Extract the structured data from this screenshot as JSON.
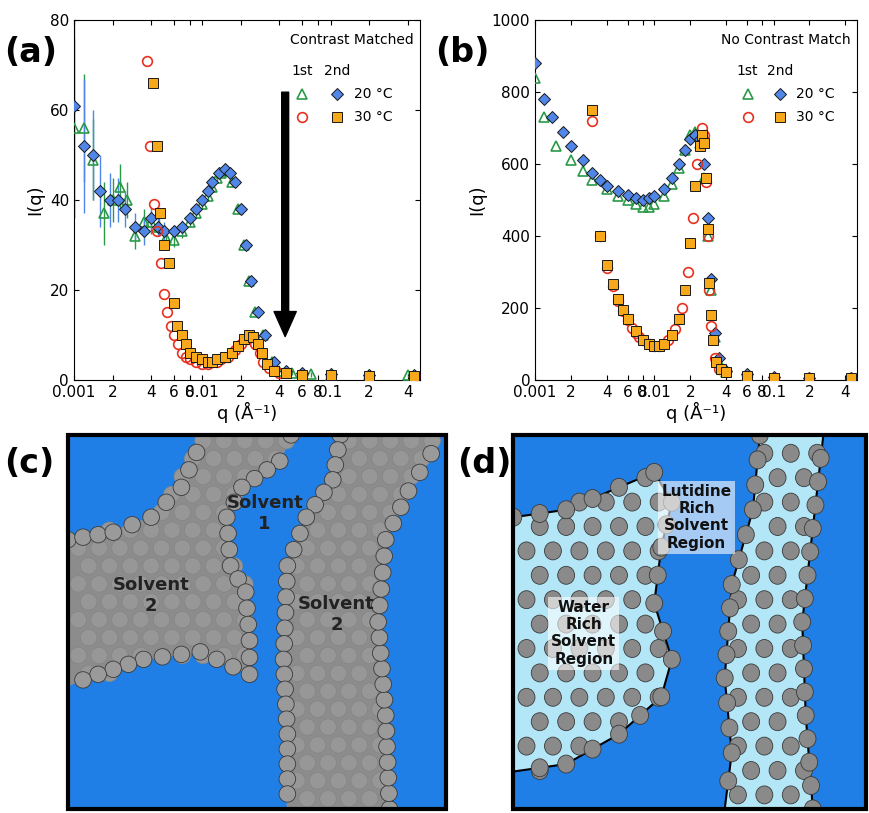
{
  "chart_data": [
    {
      "type": "scatter",
      "panel_label": "(a)",
      "title": "Contrast Matched",
      "x_label": "q (Å⁻¹)",
      "y_label": "I(q)",
      "log": "x",
      "xlim": [
        0.001,
        0.5
      ],
      "ylim": [
        0,
        80
      ],
      "xticks": [
        0.001,
        {
          "value": 0.002,
          "label": "2"
        },
        {
          "value": 0.004,
          "label": "4"
        },
        {
          "value": 0.006,
          "label": "6"
        },
        {
          "value": 0.008,
          "label": "8"
        },
        0.01,
        {
          "value": 0.02,
          "label": "2"
        },
        {
          "value": 0.04,
          "label": "4"
        },
        {
          "value": 0.06,
          "label": "6"
        },
        {
          "value": 0.08,
          "label": "8"
        },
        0.1,
        {
          "value": 0.2,
          "label": "2"
        },
        {
          "value": 0.4,
          "label": "4"
        }
      ],
      "yticks": [
        0,
        20,
        40,
        60,
        80
      ],
      "legend": "upper right",
      "legend_columns": [
        "1st",
        "2nd"
      ],
      "series": [
        {
          "name": "20 °C",
          "run": "1st",
          "color": "#2a9a48",
          "marker": "triangle_open",
          "x": [
            0.001,
            0.0012,
            0.0014,
            0.0017,
            0.002,
            0.0023,
            0.0026,
            0.003,
            0.0035,
            0.004,
            0.0046,
            0.0052,
            0.006,
            0.007,
            0.008,
            0.009,
            0.01,
            0.011,
            0.012,
            0.013,
            0.014,
            0.0155,
            0.017,
            0.019,
            0.021,
            0.023,
            0.026,
            0.03,
            0.035,
            0.04,
            0.05,
            0.07,
            0.1,
            0.2,
            0.4
          ],
          "values": [
            56,
            56,
            49,
            37,
            40,
            43,
            40,
            32,
            35,
            35,
            34,
            31.5,
            31,
            33,
            35,
            37,
            39,
            41,
            43,
            45,
            46,
            46.5,
            44,
            38,
            30,
            22,
            15,
            10,
            4,
            2,
            1.5,
            1.2,
            1,
            1,
            1
          ],
          "errors": [
            20,
            12,
            9,
            7,
            5,
            5,
            4,
            3,
            3,
            2.5,
            2,
            2,
            1.5,
            1.5,
            1,
            1,
            1,
            1,
            1,
            1,
            1,
            1,
            1,
            1,
            1,
            1,
            0.5,
            0.5,
            0.5,
            0.5,
            0.5,
            0.5,
            0.5,
            0.5,
            0.5
          ]
        },
        {
          "name": "20 °C",
          "run": "2nd",
          "color": "#4f86e8",
          "marker": "diamond",
          "x": [
            0.001,
            0.0012,
            0.0014,
            0.0016,
            0.0019,
            0.0022,
            0.0025,
            0.003,
            0.0035,
            0.004,
            0.0045,
            0.005,
            0.006,
            0.007,
            0.008,
            0.009,
            0.01,
            0.011,
            0.012,
            0.0135,
            0.015,
            0.0165,
            0.018,
            0.02,
            0.022,
            0.024,
            0.027,
            0.031,
            0.036,
            0.045,
            0.06,
            0.1,
            0.2,
            0.45
          ],
          "values": [
            61,
            52,
            50,
            42,
            40,
            40,
            38,
            34,
            33,
            36,
            34,
            33,
            33,
            34,
            36,
            38,
            40,
            42,
            44,
            46,
            47,
            46,
            44,
            38,
            30,
            22,
            15,
            10,
            4,
            2,
            1.5,
            1.2,
            1,
            1
          ],
          "errors": [
            25,
            15,
            10,
            8,
            6,
            5,
            4,
            3,
            3,
            2.5,
            2,
            2,
            1.5,
            1.5,
            1,
            1,
            1,
            1,
            1,
            1,
            1,
            1,
            1,
            1,
            1,
            1,
            0.5,
            0.5,
            0.5,
            0.5,
            0.5,
            0.5,
            0.5,
            0.5
          ]
        },
        {
          "name": "30 °C",
          "run": "1st",
          "color": "#e8301e",
          "marker": "circle_open",
          "x": [
            0.0037,
            0.0039,
            0.0042,
            0.0044,
            0.0048,
            0.005,
            0.0053,
            0.0057,
            0.006,
            0.0065,
            0.007,
            0.0075,
            0.008,
            0.009,
            0.01,
            0.011,
            0.012,
            0.013,
            0.014,
            0.016,
            0.018,
            0.02,
            0.022,
            0.024,
            0.026,
            0.028,
            0.03,
            0.033,
            0.04,
            0.06,
            0.1,
            0.2,
            0.45
          ],
          "values": [
            71,
            52,
            39,
            33,
            26,
            19,
            15,
            12,
            10,
            8,
            6,
            5,
            4.5,
            4,
            3.5,
            3.5,
            4,
            4,
            4.5,
            5,
            6.5,
            8,
            9,
            9.5,
            8,
            6,
            4,
            2.5,
            1.5,
            1,
            0.8,
            0.7,
            0.7
          ]
        },
        {
          "name": "30 °C",
          "run": "2nd",
          "color": "#f7a81b",
          "marker": "square",
          "x": [
            0.0041,
            0.0044,
            0.0047,
            0.005,
            0.0055,
            0.006,
            0.0064,
            0.007,
            0.0075,
            0.008,
            0.009,
            0.01,
            0.011,
            0.012,
            0.013,
            0.015,
            0.017,
            0.019,
            0.021,
            0.023,
            0.025,
            0.027,
            0.029,
            0.032,
            0.036,
            0.045,
            0.06,
            0.1,
            0.2,
            0.45
          ],
          "values": [
            66,
            52,
            37,
            30,
            26,
            17,
            12,
            10,
            8,
            6,
            5,
            4.5,
            4,
            4,
            4.5,
            5,
            6,
            7.5,
            9,
            10,
            9.5,
            8,
            6,
            3.5,
            2,
            1.5,
            1,
            1,
            0.8,
            0.8
          ]
        }
      ]
    },
    {
      "type": "scatter",
      "panel_label": "(b)",
      "title": "No Contrast Match",
      "x_label": "q (Å⁻¹)",
      "y_label": "I(q)",
      "log": "x",
      "xlim": [
        0.001,
        0.5
      ],
      "ylim": [
        0,
        1000
      ],
      "xticks": [
        0.001,
        {
          "value": 0.002,
          "label": "2"
        },
        {
          "value": 0.004,
          "label": "4"
        },
        {
          "value": 0.006,
          "label": "6"
        },
        {
          "value": 0.008,
          "label": "8"
        },
        0.01,
        {
          "value": 0.02,
          "label": "2"
        },
        {
          "value": 0.04,
          "label": "4"
        },
        {
          "value": 0.06,
          "label": "6"
        },
        {
          "value": 0.08,
          "label": "8"
        },
        0.1,
        {
          "value": 0.2,
          "label": "2"
        },
        {
          "value": 0.4,
          "label": "4"
        }
      ],
      "yticks": [
        0,
        200,
        400,
        600,
        800,
        1000
      ],
      "legend": "upper right",
      "legend_columns": [
        "1st",
        "2nd"
      ],
      "series": [
        {
          "name": "20 °C",
          "run": "1st",
          "color": "#2a9a48",
          "marker": "triangle_open",
          "x": [
            0.001,
            0.0012,
            0.0015,
            0.002,
            0.0025,
            0.003,
            0.004,
            0.005,
            0.006,
            0.007,
            0.008,
            0.009,
            0.01,
            0.012,
            0.014,
            0.016,
            0.018,
            0.02,
            0.022,
            0.024,
            0.026,
            0.028,
            0.03,
            0.032,
            0.035,
            0.04,
            0.06,
            0.1,
            0.2,
            0.45
          ],
          "values": [
            840,
            730,
            650,
            610,
            580,
            555,
            530,
            510,
            500,
            490,
            480,
            480,
            490,
            510,
            545,
            590,
            640,
            680,
            690,
            660,
            560,
            400,
            250,
            120,
            50,
            20,
            10,
            5,
            5,
            5
          ]
        },
        {
          "name": "20 °C",
          "run": "2nd",
          "color": "#4f86e8",
          "marker": "diamond",
          "x": [
            0.001,
            0.0012,
            0.0014,
            0.0017,
            0.002,
            0.0025,
            0.003,
            0.0035,
            0.004,
            0.005,
            0.006,
            0.007,
            0.008,
            0.009,
            0.01,
            0.012,
            0.014,
            0.016,
            0.018,
            0.02,
            0.022,
            0.024,
            0.026,
            0.028,
            0.03,
            0.032,
            0.035,
            0.04,
            0.06,
            0.1,
            0.2,
            0.45
          ],
          "values": [
            880,
            780,
            730,
            690,
            650,
            610,
            575,
            555,
            540,
            525,
            515,
            505,
            500,
            505,
            510,
            530,
            560,
            600,
            640,
            670,
            680,
            670,
            600,
            450,
            280,
            130,
            60,
            25,
            15,
            8,
            5,
            5
          ]
        },
        {
          "name": "30 °C",
          "run": "1st",
          "color": "#e8301e",
          "marker": "circle_open",
          "x": [
            0.003,
            0.0035,
            0.004,
            0.0045,
            0.005,
            0.0055,
            0.006,
            0.0065,
            0.007,
            0.0075,
            0.008,
            0.009,
            0.01,
            0.011,
            0.012,
            0.013,
            0.015,
            0.017,
            0.019,
            0.021,
            0.023,
            0.025,
            0.026,
            0.027,
            0.028,
            0.029,
            0.03,
            0.032,
            0.035,
            0.04,
            0.06,
            0.1,
            0.2,
            0.45
          ],
          "values": [
            720,
            400,
            310,
            260,
            220,
            190,
            165,
            145,
            130,
            120,
            110,
            100,
            95,
            95,
            100,
            110,
            140,
            200,
            300,
            450,
            600,
            700,
            680,
            550,
            400,
            250,
            150,
            60,
            30,
            20,
            10,
            5,
            4,
            4
          ]
        },
        {
          "name": "30 °C",
          "run": "2nd",
          "color": "#f7a81b",
          "marker": "square",
          "x": [
            0.003,
            0.0035,
            0.004,
            0.0045,
            0.005,
            0.0055,
            0.006,
            0.007,
            0.008,
            0.009,
            0.01,
            0.011,
            0.012,
            0.014,
            0.016,
            0.018,
            0.02,
            0.022,
            0.024,
            0.025,
            0.026,
            0.027,
            0.028,
            0.029,
            0.03,
            0.031,
            0.033,
            0.036,
            0.04,
            0.06,
            0.1,
            0.2,
            0.45
          ],
          "values": [
            750,
            400,
            320,
            265,
            225,
            195,
            170,
            135,
            110,
            100,
            95,
            95,
            100,
            125,
            170,
            250,
            380,
            540,
            650,
            680,
            660,
            560,
            420,
            270,
            180,
            110,
            50,
            30,
            20,
            10,
            5,
            4,
            4
          ]
        }
      ]
    }
  ],
  "diagrams": [
    {
      "panel_label": "(c)",
      "labels": [
        "Solvent\n1",
        "Solvent\n2",
        "Solvent\n2"
      ]
    },
    {
      "panel_label": "(d)",
      "labels": [
        "Water\nRich\nSolvent\nRegion",
        "Lutidine\nRich\nSolvent\nRegion"
      ]
    }
  ]
}
